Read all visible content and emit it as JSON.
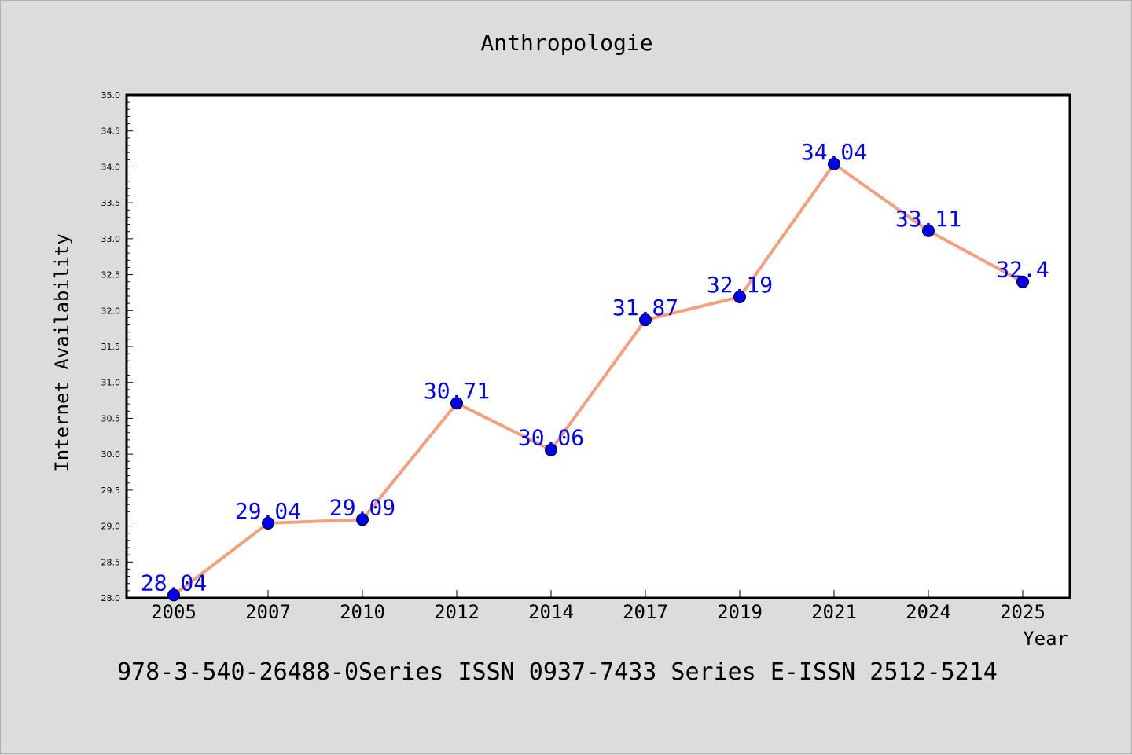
{
  "chart_data": {
    "type": "line",
    "title": "Anthropologie",
    "xlabel": "Year",
    "ylabel": "Internet Availability",
    "categories": [
      "2005",
      "2007",
      "2010",
      "2012",
      "2014",
      "2017",
      "2019",
      "2021",
      "2024",
      "2025"
    ],
    "values": [
      28.04,
      29.04,
      29.09,
      30.71,
      30.06,
      31.87,
      32.19,
      34.04,
      33.11,
      32.4
    ],
    "data_labels": [
      "28.04",
      "29.04",
      "29.09",
      "30.71",
      "30.06",
      "31.87",
      "32.19",
      "34.04",
      "33.11",
      "32.4"
    ],
    "ylim": [
      28.0,
      35.0
    ],
    "yticks": [
      "28.0",
      "28.5",
      "29.0",
      "29.5",
      "30.0",
      "30.5",
      "31.0",
      "31.5",
      "32.0",
      "32.5",
      "33.0",
      "33.5",
      "34.0",
      "34.5",
      "35.0"
    ],
    "grid": false,
    "legend": "none",
    "colors": {
      "line": "#f4a07c",
      "marker": "#0000ee",
      "data_label": "#0000ff",
      "background": "#dcdcdc",
      "plot_area": "#ffffff"
    },
    "footer": "978-3-540-26488-0Series ISSN 0937-7433 Series E-ISSN 2512-5214"
  }
}
